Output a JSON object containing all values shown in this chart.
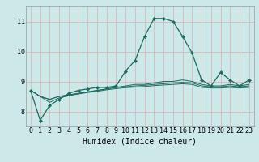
{
  "title": "",
  "xlabel": "Humidex (Indice chaleur)",
  "background_color": "#cce8e8",
  "grid_color": "#d8b8b8",
  "line_color": "#1a6b5e",
  "xlim": [
    -0.5,
    23.5
  ],
  "ylim": [
    7.5,
    11.5
  ],
  "xticks": [
    0,
    1,
    2,
    3,
    4,
    5,
    6,
    7,
    8,
    9,
    10,
    11,
    12,
    13,
    14,
    15,
    16,
    17,
    18,
    19,
    20,
    21,
    22,
    23
  ],
  "yticks": [
    8,
    9,
    10,
    11
  ],
  "series_main": [
    8.7,
    7.7,
    8.2,
    8.4,
    8.6,
    8.7,
    8.75,
    8.8,
    8.8,
    8.85,
    9.35,
    9.7,
    10.5,
    11.1,
    11.1,
    11.0,
    10.5,
    9.95,
    9.05,
    8.85,
    9.3,
    9.05,
    8.85,
    9.05
  ],
  "series_flat": [
    [
      8.7,
      8.5,
      8.4,
      8.5,
      8.55,
      8.6,
      8.65,
      8.7,
      8.75,
      8.8,
      8.85,
      8.9,
      8.9,
      8.95,
      9.0,
      9.0,
      9.05,
      9.0,
      8.9,
      8.85,
      8.85,
      8.9,
      8.85,
      8.9
    ],
    [
      8.7,
      8.5,
      8.4,
      8.5,
      8.55,
      8.6,
      8.65,
      8.7,
      8.75,
      8.8,
      8.82,
      8.85,
      8.87,
      8.9,
      8.92,
      8.95,
      8.97,
      8.95,
      8.85,
      8.82,
      8.82,
      8.85,
      8.82,
      8.85
    ],
    [
      8.7,
      8.5,
      8.3,
      8.45,
      8.52,
      8.58,
      8.63,
      8.67,
      8.72,
      8.76,
      8.79,
      8.81,
      8.83,
      8.86,
      8.88,
      8.9,
      8.92,
      8.9,
      8.8,
      8.78,
      8.78,
      8.8,
      8.78,
      8.8
    ]
  ],
  "tick_fontsize": 6,
  "xlabel_fontsize": 7
}
